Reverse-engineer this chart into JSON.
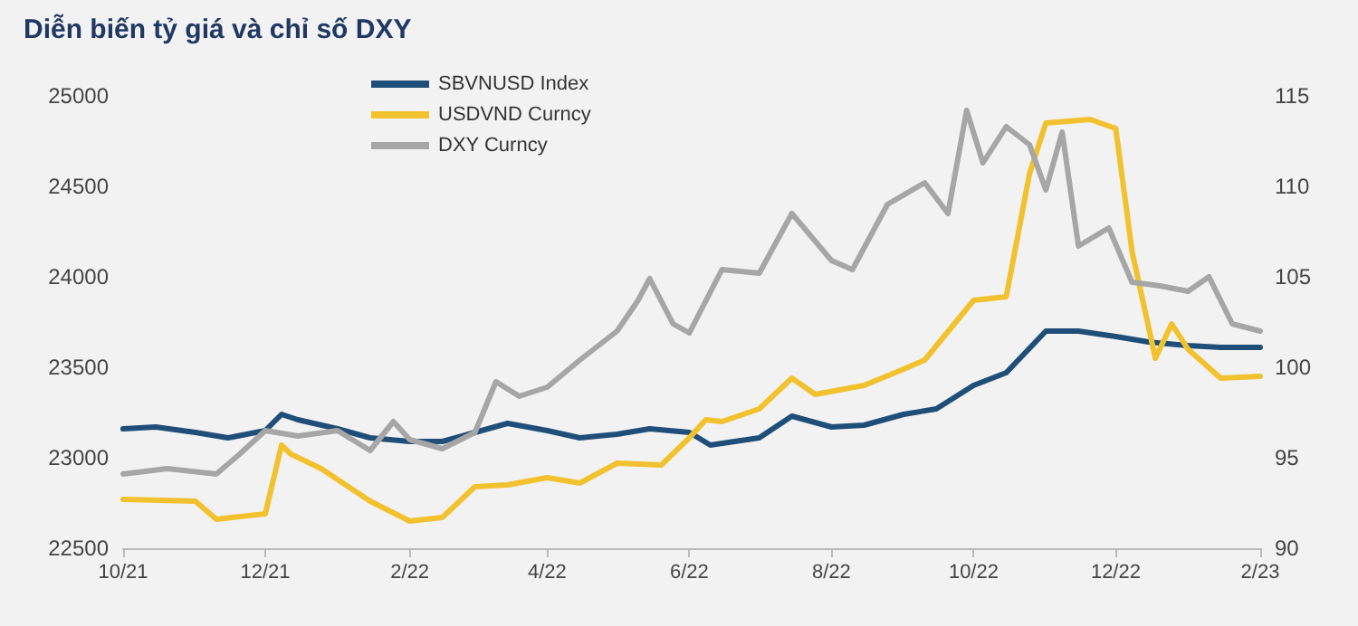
{
  "chart_data": {
    "type": "line",
    "title": "Diễn biến tỷ giá và chỉ số DXY",
    "xlim": [
      "2021-10",
      "2023-02"
    ],
    "xticks": [
      {
        "value": "2021-10",
        "label": "10/21"
      },
      {
        "value": "2021-12",
        "label": "12/21"
      },
      {
        "value": "2022-02",
        "label": "2/22"
      },
      {
        "value": "2022-04",
        "label": "4/22"
      },
      {
        "value": "2022-06",
        "label": "6/22"
      },
      {
        "value": "2022-08",
        "label": "8/22"
      },
      {
        "value": "2022-10",
        "label": "10/22"
      },
      {
        "value": "2022-12",
        "label": "12/22"
      },
      {
        "value": "2023-02",
        "label": "2/23"
      }
    ],
    "ylim": [
      22500,
      25000
    ],
    "yticks": [
      22500,
      23000,
      23500,
      24000,
      24500,
      25000
    ],
    "y2lim": [
      90,
      115
    ],
    "y2ticks": [
      90,
      95,
      100,
      105,
      110,
      115
    ],
    "grid": false,
    "legend": "top left",
    "marker": "none",
    "line_style": "solid",
    "series": [
      {
        "name": "SBVNUSD Index",
        "color": "#1f4e79",
        "x": [
          "2021-10-01",
          "2021-10-15",
          "2021-11-01",
          "2021-11-15",
          "2021-12-01",
          "2021-12-08",
          "2021-12-15",
          "2022-01-01",
          "2022-01-15",
          "2022-02-01",
          "2022-02-15",
          "2022-03-01",
          "2022-03-15",
          "2022-04-01",
          "2022-04-15",
          "2022-05-01",
          "2022-05-15",
          "2022-06-01",
          "2022-06-10",
          "2022-07-01",
          "2022-07-15",
          "2022-08-01",
          "2022-08-15",
          "2022-09-01",
          "2022-09-15",
          "2022-10-01",
          "2022-10-15",
          "2022-11-01",
          "2022-11-15",
          "2022-12-01",
          "2022-12-15",
          "2023-01-01",
          "2023-01-15",
          "2023-02-01"
        ],
        "values": [
          23160,
          23170,
          23140,
          23110,
          23150,
          23240,
          23210,
          23160,
          23110,
          23090,
          23090,
          23140,
          23190,
          23150,
          23110,
          23130,
          23160,
          23140,
          23070,
          23110,
          23230,
          23170,
          23180,
          23240,
          23270,
          23400,
          23470,
          23700,
          23700,
          23670,
          23640,
          23620,
          23610,
          23610
        ]
      },
      {
        "name": "USDVND Curncy",
        "color": "#f2c12e",
        "x": [
          "2021-10-01",
          "2021-11-01",
          "2021-11-10",
          "2021-12-01",
          "2021-12-08",
          "2021-12-12",
          "2021-12-25",
          "2022-01-15",
          "2022-02-01",
          "2022-02-15",
          "2022-03-01",
          "2022-03-15",
          "2022-04-01",
          "2022-04-15",
          "2022-05-01",
          "2022-05-20",
          "2022-06-01",
          "2022-06-08",
          "2022-06-15",
          "2022-07-01",
          "2022-07-15",
          "2022-07-25",
          "2022-08-15",
          "2022-09-01",
          "2022-09-10",
          "2022-10-01",
          "2022-10-15",
          "2022-10-25",
          "2022-11-01",
          "2022-11-20",
          "2022-12-01",
          "2022-12-08",
          "2022-12-18",
          "2022-12-25",
          "2023-01-01",
          "2023-01-15",
          "2023-02-01"
        ],
        "values": [
          22770,
          22760,
          22660,
          22690,
          23070,
          23020,
          22940,
          22760,
          22650,
          22670,
          22840,
          22850,
          22890,
          22860,
          22970,
          22960,
          23110,
          23210,
          23200,
          23270,
          23440,
          23350,
          23400,
          23490,
          23540,
          23870,
          23890,
          24570,
          24850,
          24870,
          24820,
          24140,
          23550,
          23740,
          23600,
          23440,
          23450
        ]
      },
      {
        "name": "DXY Curncy",
        "color": "#a6a6a6",
        "axis": "y2",
        "x": [
          "2021-10-01",
          "2021-10-20",
          "2021-11-10",
          "2021-11-20",
          "2021-12-01",
          "2021-12-15",
          "2022-01-01",
          "2022-01-15",
          "2022-01-25",
          "2022-02-01",
          "2022-02-15",
          "2022-03-01",
          "2022-03-10",
          "2022-03-20",
          "2022-04-01",
          "2022-04-15",
          "2022-05-01",
          "2022-05-10",
          "2022-05-15",
          "2022-05-25",
          "2022-06-01",
          "2022-06-15",
          "2022-07-01",
          "2022-07-15",
          "2022-08-01",
          "2022-08-10",
          "2022-08-25",
          "2022-09-10",
          "2022-09-20",
          "2022-09-28",
          "2022-10-05",
          "2022-10-15",
          "2022-10-25",
          "2022-11-01",
          "2022-11-08",
          "2022-11-15",
          "2022-11-28",
          "2022-12-08",
          "2022-12-20",
          "2023-01-01",
          "2023-01-10",
          "2023-01-20",
          "2023-02-01"
        ],
        "values": [
          94.1,
          94.4,
          94.1,
          95.2,
          96.5,
          96.2,
          96.5,
          95.4,
          97.0,
          96.0,
          95.5,
          96.4,
          99.2,
          98.4,
          98.9,
          100.4,
          102.0,
          103.7,
          104.9,
          102.4,
          101.9,
          105.4,
          105.2,
          108.5,
          105.9,
          105.4,
          109.0,
          110.2,
          108.5,
          114.2,
          111.3,
          113.3,
          112.3,
          109.8,
          113.0,
          106.7,
          107.7,
          104.7,
          104.5,
          104.2,
          105.0,
          102.4,
          102.0
        ]
      }
    ]
  }
}
